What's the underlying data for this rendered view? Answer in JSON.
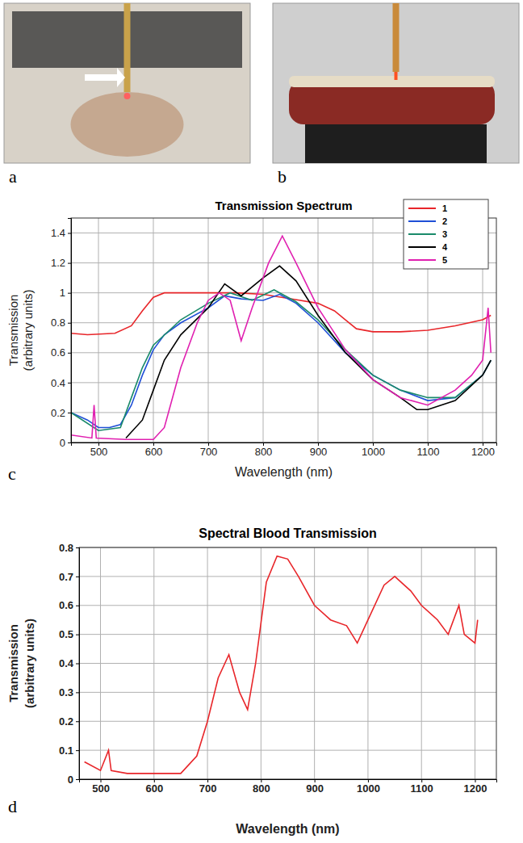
{
  "photos": [
    {
      "label": "a"
    },
    {
      "label": "b"
    }
  ],
  "chart_data": [
    {
      "type": "line",
      "panel_label": "c",
      "title": "Transmission Spectrum",
      "x_label": "Wavelength (nm)",
      "y_label": "Transmission (arbitrary units)",
      "xlim": [
        450,
        1225
      ],
      "ylim": [
        0,
        1.5
      ],
      "xticks": [
        500,
        600,
        700,
        800,
        900,
        1000,
        1100,
        1200
      ],
      "yticks": [
        0,
        0.2,
        0.4,
        0.6,
        0.8,
        1,
        1.2,
        1.4
      ],
      "grid": true,
      "legend": "upper right",
      "series": [
        {
          "name": "1",
          "color": "#e8262a",
          "x": [
            450,
            480,
            530,
            560,
            580,
            600,
            620,
            700,
            750,
            800,
            850,
            900,
            930,
            950,
            970,
            1000,
            1050,
            1100,
            1150,
            1200,
            1215
          ],
          "values": [
            0.73,
            0.72,
            0.73,
            0.78,
            0.88,
            0.97,
            1.0,
            1.0,
            1.0,
            0.99,
            0.96,
            0.93,
            0.88,
            0.82,
            0.76,
            0.74,
            0.74,
            0.75,
            0.78,
            0.82,
            0.85
          ]
        },
        {
          "name": "2",
          "color": "#1f4fd6",
          "x": [
            450,
            480,
            500,
            520,
            540,
            560,
            580,
            600,
            620,
            650,
            700,
            730,
            760,
            800,
            830,
            860,
            900,
            950,
            1000,
            1050,
            1100,
            1150,
            1200,
            1215
          ],
          "values": [
            0.2,
            0.15,
            0.1,
            0.1,
            0.12,
            0.25,
            0.45,
            0.62,
            0.72,
            0.8,
            0.9,
            0.98,
            0.96,
            0.95,
            0.99,
            0.93,
            0.8,
            0.6,
            0.45,
            0.35,
            0.28,
            0.3,
            0.45,
            0.55
          ]
        },
        {
          "name": "3",
          "color": "#1a8a6a",
          "x": [
            450,
            500,
            540,
            560,
            580,
            600,
            650,
            700,
            740,
            780,
            820,
            860,
            900,
            950,
            1000,
            1050,
            1100,
            1150,
            1200,
            1215
          ],
          "values": [
            0.2,
            0.08,
            0.1,
            0.3,
            0.5,
            0.65,
            0.82,
            0.93,
            1.0,
            0.95,
            1.02,
            0.94,
            0.82,
            0.62,
            0.45,
            0.35,
            0.3,
            0.3,
            0.45,
            0.55
          ]
        },
        {
          "name": "4",
          "color": "#000000",
          "x": [
            550,
            580,
            600,
            620,
            650,
            700,
            730,
            760,
            800,
            830,
            860,
            900,
            950,
            1000,
            1050,
            1080,
            1100,
            1150,
            1200,
            1215
          ],
          "values": [
            0.03,
            0.15,
            0.35,
            0.55,
            0.72,
            0.9,
            1.06,
            0.98,
            1.1,
            1.18,
            1.08,
            0.85,
            0.6,
            0.42,
            0.3,
            0.22,
            0.22,
            0.28,
            0.45,
            0.55
          ]
        },
        {
          "name": "5",
          "color": "#e020b0",
          "x": [
            450,
            488,
            492,
            496,
            550,
            600,
            620,
            650,
            680,
            700,
            720,
            740,
            760,
            780,
            810,
            835,
            860,
            900,
            950,
            1000,
            1050,
            1100,
            1150,
            1180,
            1200,
            1210,
            1215
          ],
          "values": [
            0.05,
            0.03,
            0.25,
            0.03,
            0.02,
            0.02,
            0.1,
            0.5,
            0.8,
            0.95,
            1.0,
            0.95,
            0.68,
            0.9,
            1.2,
            1.38,
            1.2,
            0.9,
            0.62,
            0.42,
            0.3,
            0.25,
            0.35,
            0.45,
            0.55,
            0.9,
            0.6
          ]
        }
      ]
    },
    {
      "type": "line",
      "panel_label": "d",
      "title": "Spectral Blood Transmission",
      "x_label": "Wavelength (nm)",
      "y_label": "Transmission (arbitrary units)",
      "xlim": [
        460,
        1240
      ],
      "ylim": [
        0,
        0.8
      ],
      "xticks": [
        500,
        600,
        700,
        800,
        900,
        1000,
        1100,
        1200
      ],
      "yticks": [
        0,
        0.1,
        0.2,
        0.3,
        0.4,
        0.5,
        0.6,
        0.7,
        0.8
      ],
      "grid": true,
      "series": [
        {
          "color": "#e8262a",
          "x": [
            470,
            500,
            515,
            520,
            550,
            600,
            650,
            680,
            700,
            720,
            740,
            760,
            775,
            790,
            810,
            830,
            850,
            870,
            900,
            930,
            960,
            980,
            1000,
            1030,
            1050,
            1080,
            1100,
            1130,
            1150,
            1170,
            1180,
            1200,
            1205
          ],
          "values": [
            0.06,
            0.03,
            0.1,
            0.03,
            0.02,
            0.02,
            0.02,
            0.08,
            0.2,
            0.35,
            0.43,
            0.3,
            0.24,
            0.4,
            0.68,
            0.77,
            0.76,
            0.7,
            0.6,
            0.55,
            0.53,
            0.47,
            0.55,
            0.67,
            0.7,
            0.65,
            0.6,
            0.55,
            0.5,
            0.6,
            0.5,
            0.47,
            0.55
          ]
        }
      ]
    }
  ]
}
